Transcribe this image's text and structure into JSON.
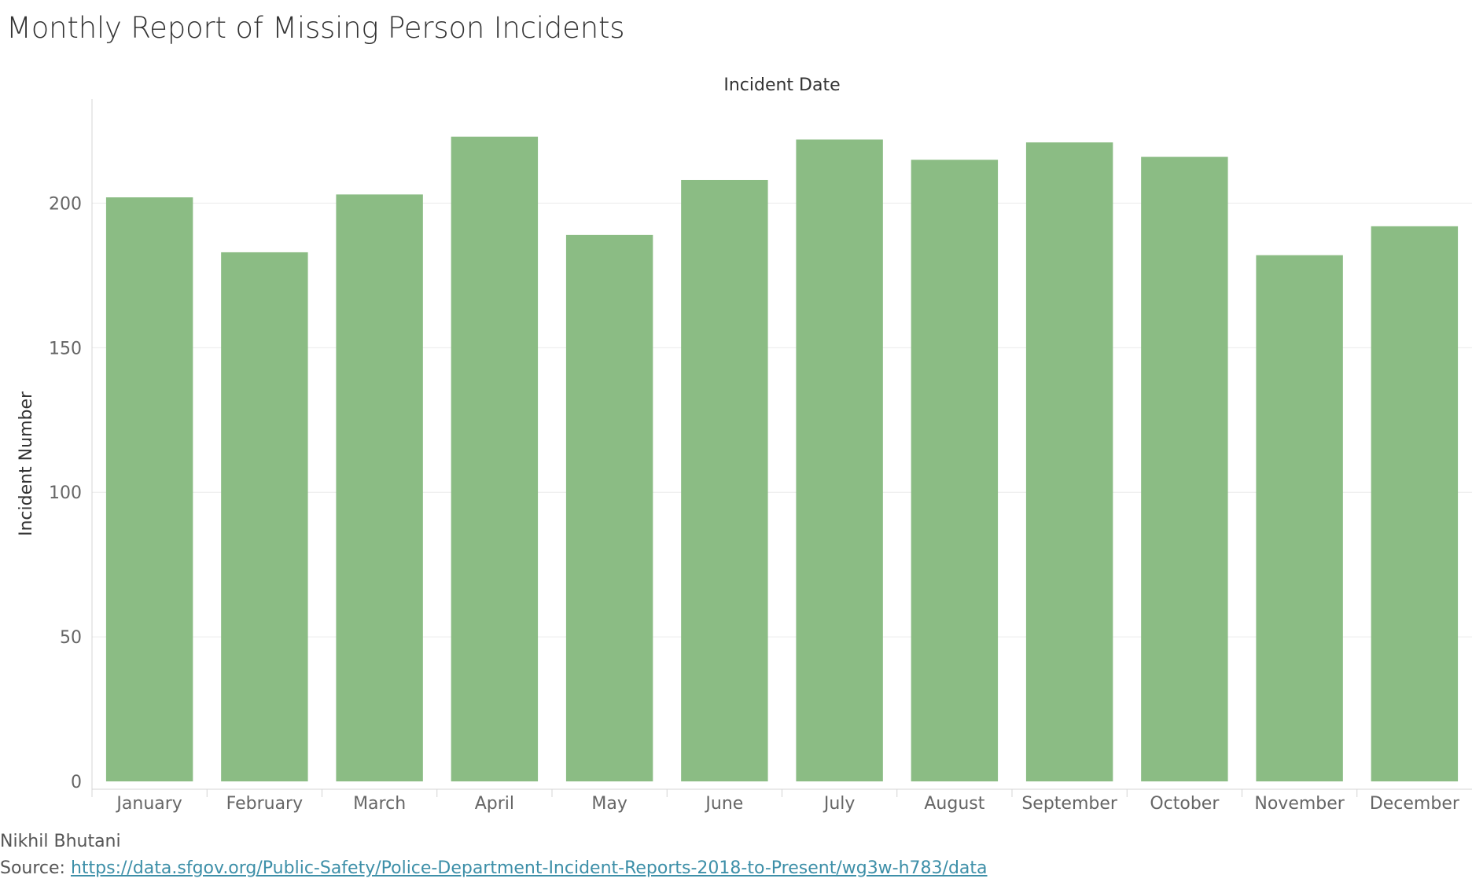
{
  "title": "Monthly Report of Missing Person Incidents",
  "footer": {
    "author": "Nikhil Bhutani",
    "source_prefix": "Source: ",
    "source_url": "https://data.sfgov.org/Public-Safety/Police-Department-Incident-Reports-2018-to-Present/wg3w-h783/data"
  },
  "colors": {
    "bar": "#8bbc84",
    "grid": "#ebebeb",
    "axis": "#d4d4d4"
  },
  "chart_data": {
    "type": "bar",
    "title": "Monthly Report of Missing Person Incidents",
    "xlabel": "Incident Date",
    "ylabel": "Incident Number",
    "categories": [
      "January",
      "February",
      "March",
      "April",
      "May",
      "June",
      "July",
      "August",
      "September",
      "October",
      "November",
      "December"
    ],
    "values": [
      202,
      183,
      203,
      223,
      189,
      208,
      222,
      215,
      221,
      216,
      182,
      192
    ],
    "yticks": [
      0,
      50,
      100,
      150,
      200
    ],
    "ylim": [
      0,
      236
    ],
    "grid": true,
    "legend": "none"
  }
}
